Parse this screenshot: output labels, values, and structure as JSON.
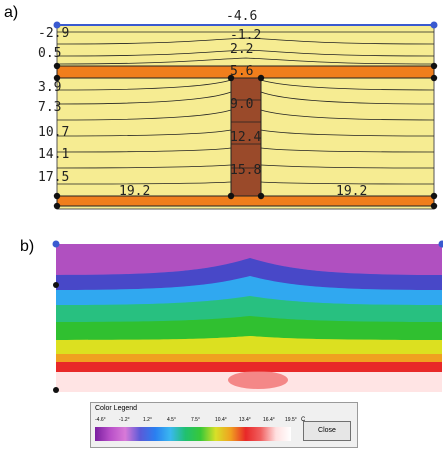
{
  "panel_a_label": "a)",
  "panel_b_label": "b)",
  "isotherm_labels_left": [
    "-2.9",
    "0.5",
    "3.9",
    "7.3",
    "10.7",
    "14.1",
    "17.5"
  ],
  "isotherm_labels_center": [
    "-4.6",
    "-1.2",
    "2.2",
    "5.6",
    "9.0",
    "12.4",
    "15.8"
  ],
  "isotherm_labels_bottom": [
    "19.2",
    "19.2"
  ],
  "colors": {
    "wall_fill": "#f6ec92",
    "flange": "#f07e1c",
    "column": "#9a4a2a",
    "node": "#111111",
    "corner_node": "#3a5ad0"
  },
  "legend": {
    "title": "Color Legend",
    "ticks": [
      "-4.6°",
      "-1.2°",
      "1.2°",
      "4.5°",
      "7.5°",
      "10.4°",
      "13.4°",
      "16.4°",
      "19.5°"
    ],
    "unit": "C",
    "close_label": "Close"
  }
}
